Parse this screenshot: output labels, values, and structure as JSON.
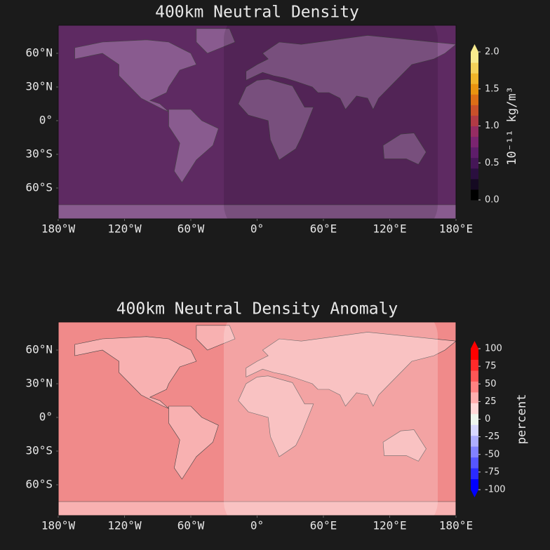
{
  "panels": [
    {
      "title": "400km Neutral Density",
      "xlim": [
        -180,
        180
      ],
      "ylim": [
        -87.5,
        85
      ],
      "lon_ticks": [
        {
          "value": -180,
          "label": "180°W"
        },
        {
          "value": -120,
          "label": "120°W"
        },
        {
          "value": -60,
          "label": "60°W"
        },
        {
          "value": 0,
          "label": "0°"
        },
        {
          "value": 60,
          "label": "60°E"
        },
        {
          "value": 120,
          "label": "120°E"
        },
        {
          "value": 180,
          "label": "180°E"
        }
      ],
      "lat_ticks": [
        {
          "value": 60,
          "label": "60°N"
        },
        {
          "value": 30,
          "label": "30°N"
        },
        {
          "value": 0,
          "label": "0°"
        },
        {
          "value": -30,
          "label": "30°S"
        },
        {
          "value": -60,
          "label": "60°S"
        }
      ],
      "colorbar": {
        "label": "10⁻¹¹ kg/m³",
        "clim": [
          0,
          2
        ],
        "extend": "max",
        "ticks": [
          {
            "value": 2,
            "label": "2.0"
          },
          {
            "value": 1.5,
            "label": "1.5"
          },
          {
            "value": 1,
            "label": "1.0"
          },
          {
            "value": 0.5,
            "label": "0.5"
          },
          {
            "value": 0,
            "label": "0.0"
          }
        ],
        "colors": [
          "#000000",
          "#150a22",
          "#2a0f3f",
          "#451657",
          "#5e1d6a",
          "#7a2470",
          "#952c62",
          "#b13a45",
          "#c9502a",
          "#dc6e16",
          "#e99410",
          "#f0b52a",
          "#f4d25a",
          "#f7ea8e"
        ]
      }
    },
    {
      "title": "400km Neutral Density Anomaly",
      "xlim": [
        -180,
        180
      ],
      "ylim": [
        -87.5,
        85
      ],
      "lon_ticks": [
        {
          "value": -180,
          "label": "180°W"
        },
        {
          "value": -120,
          "label": "120°W"
        },
        {
          "value": -60,
          "label": "60°W"
        },
        {
          "value": 0,
          "label": "0°"
        },
        {
          "value": 60,
          "label": "60°E"
        },
        {
          "value": 120,
          "label": "120°E"
        },
        {
          "value": 180,
          "label": "180°E"
        }
      ],
      "lat_ticks": [
        {
          "value": 60,
          "label": "60°N"
        },
        {
          "value": 30,
          "label": "30°N"
        },
        {
          "value": 0,
          "label": "0°"
        },
        {
          "value": -30,
          "label": "30°S"
        },
        {
          "value": -60,
          "label": "60°S"
        }
      ],
      "colorbar": {
        "label": "percent",
        "clim": [
          -100,
          100
        ],
        "extend": "both",
        "ticks": [
          100,
          75,
          50,
          25,
          0,
          -25,
          -50,
          -75,
          -100
        ],
        "colors": [
          "#0000ff",
          "#2a2aff",
          "#5656ff",
          "#8282ff",
          "#aeaeff",
          "#d8d8ff",
          "#eef6ee",
          "#ffd8d8",
          "#ffaeae",
          "#ff8282",
          "#ff5656",
          "#ff2a2a",
          "#ff0000"
        ]
      }
    }
  ]
}
